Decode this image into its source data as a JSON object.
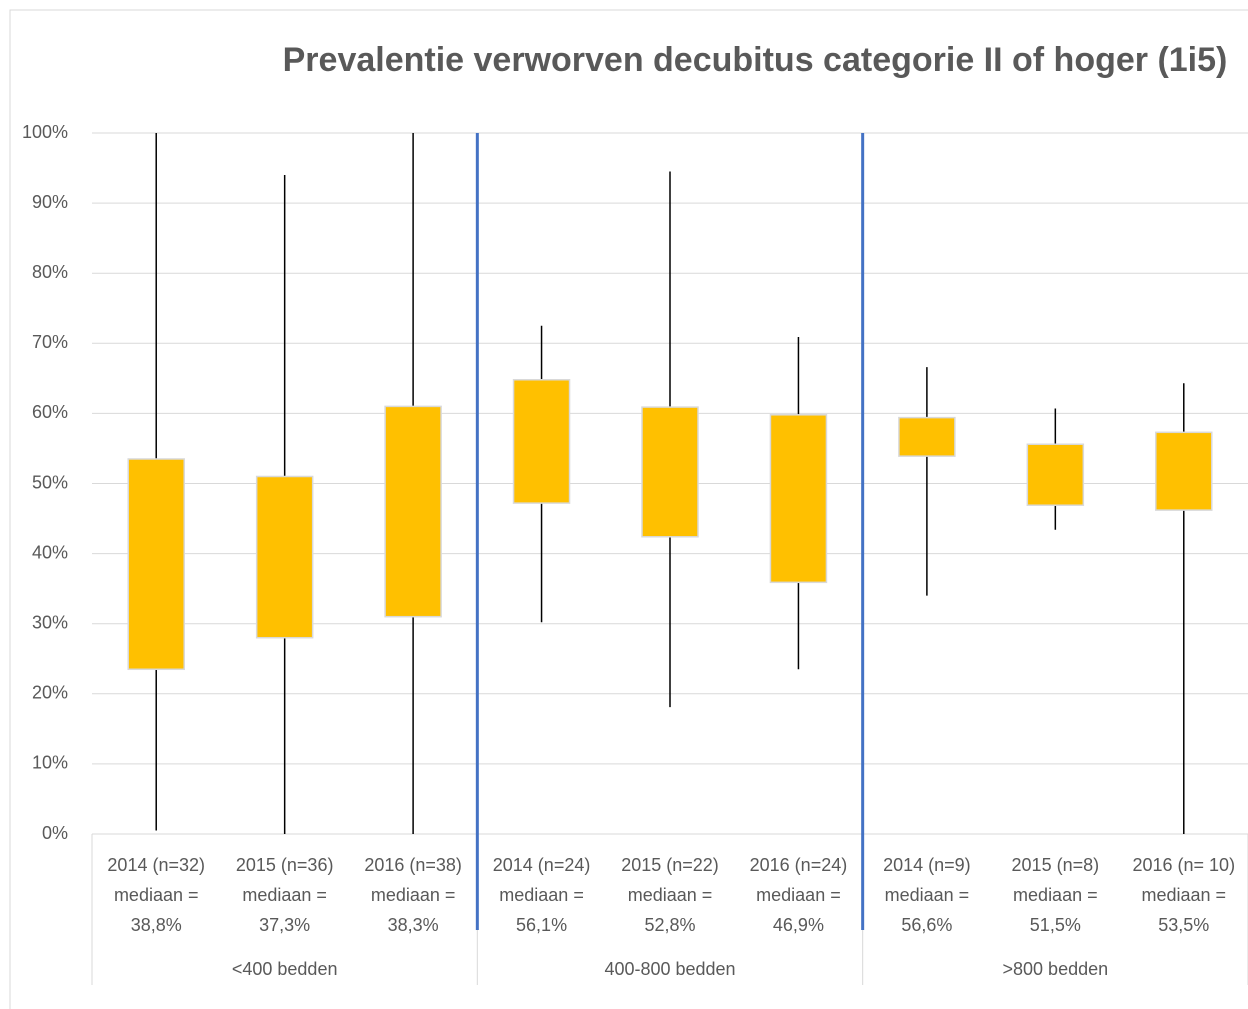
{
  "chart_data": {
    "type": "box",
    "title": "Prevalentie verworven decubitus categorie II of hoger (1i5)",
    "categories": [
      [
        "2014 (n=32)",
        "mediaan =",
        "38,8%"
      ],
      [
        "2015 (n=36)",
        "mediaan =",
        "37,3%"
      ],
      [
        "2016 (n=38)",
        "mediaan =",
        "38,3%"
      ],
      [
        "2014 (n=24)",
        "mediaan =",
        "56,1%"
      ],
      [
        "2015 (n=22)",
        "mediaan =",
        "52,8%"
      ],
      [
        "2016 (n=24)",
        "mediaan =",
        "46,9%"
      ],
      [
        "2014 (n=9)",
        "mediaan =",
        "56,6%"
      ],
      [
        "2015 (n=8)",
        "mediaan =",
        "51,5%"
      ],
      [
        "2016 (n= 10)",
        "mediaan =",
        "53,5%"
      ]
    ],
    "groups": [
      "<400 bedden",
      "400-800 bedden",
      ">800 bedden"
    ],
    "low": [
      0.5,
      0,
      0,
      30.2,
      18.1,
      23.5,
      34,
      43.4,
      0
    ],
    "box_low": [
      23.5,
      28,
      31,
      47.2,
      42.4,
      35.9,
      53.9,
      46.9,
      46.2
    ],
    "box_high": [
      53.5,
      51,
      61,
      64.8,
      60.9,
      59.8,
      59.4,
      55.6,
      57.3
    ],
    "high": [
      100,
      94,
      100,
      72.5,
      94.5,
      70.9,
      66.6,
      60.7,
      64.3
    ],
    "box_color": "#ffc000",
    "whisker_color": "#000000",
    "separator_color": "#4472c4",
    "ylim": [
      0,
      100
    ],
    "yticks": [
      {
        "value": 0,
        "label": "0%"
      },
      {
        "value": 10,
        "label": "10%"
      },
      {
        "value": 20,
        "label": "20%"
      },
      {
        "value": 30,
        "label": "30%"
      },
      {
        "value": 40,
        "label": "40%"
      },
      {
        "value": 50,
        "label": "50%"
      },
      {
        "value": 60,
        "label": "60%"
      },
      {
        "value": 70,
        "label": "70%"
      },
      {
        "value": 80,
        "label": "80%"
      },
      {
        "value": 90,
        "label": "90%"
      },
      {
        "value": 100,
        "label": "100%"
      }
    ],
    "grid": true
  }
}
